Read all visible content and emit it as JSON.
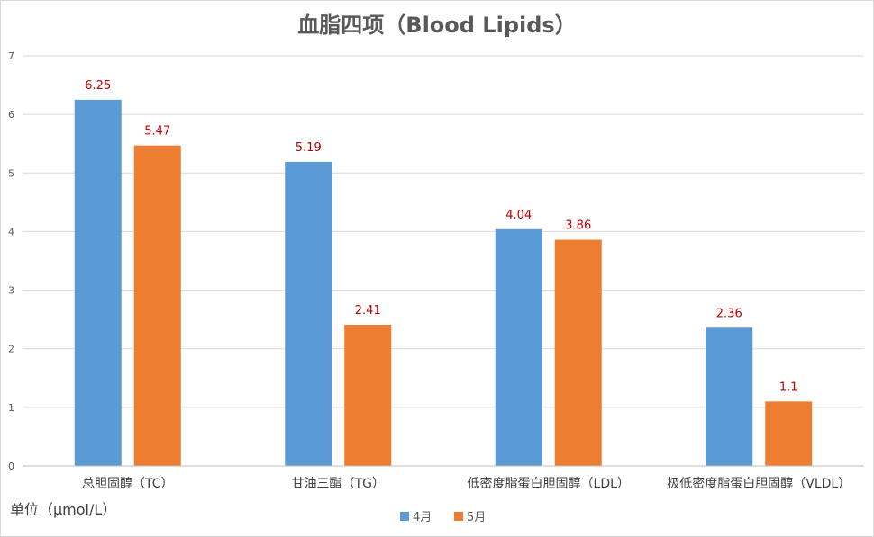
{
  "chart_data": {
    "type": "bar",
    "title": "血脂四项（Blood Lipids）",
    "categories": [
      "总胆固醇（TC）",
      "甘油三酯（TG）",
      "低密度脂蛋白胆固醇（LDL）",
      "极低密度脂蛋白胆固醇（VLDL）"
    ],
    "series": [
      {
        "name": "4月",
        "values": [
          6.25,
          5.19,
          4.04,
          2.36
        ],
        "color": "#5b9bd5",
        "labels": [
          "6.25",
          "5.19",
          "4.04",
          "2.36"
        ]
      },
      {
        "name": "5月",
        "values": [
          5.47,
          2.41,
          3.86,
          1.1
        ],
        "color": "#ed7d31",
        "labels": [
          "5.47",
          "2.41",
          "3.86",
          "1.1"
        ]
      }
    ],
    "ylim": [
      0,
      7
    ],
    "yticks": [
      "0",
      "1",
      "2",
      "3",
      "4",
      "5",
      "6",
      "7"
    ],
    "ylabel": "单位（μmol/L）",
    "xlabel": "",
    "grid": true,
    "legend": "bottom",
    "data_label_color": "#c00000"
  }
}
